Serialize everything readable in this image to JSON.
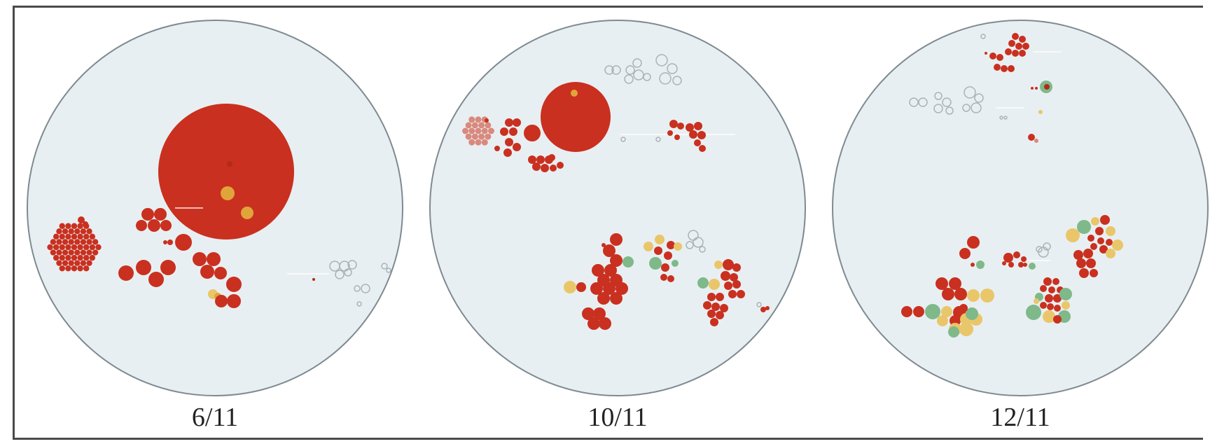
{
  "panels": [
    {
      "label": "6/11"
    },
    {
      "label": "10/11"
    },
    {
      "label": "12/11"
    }
  ],
  "colors": {
    "frame": "#4a4a4a",
    "disc_fill": "#e8eff2",
    "disc_stroke": "#7f8a90",
    "red": "#c9301f",
    "red_dark": "#b42a1a",
    "orange": "#e0a53a",
    "yellow": "#eac66a",
    "green": "#7fb98a",
    "grey_outline": "#a9b3b8",
    "pink": "#d9897d"
  }
}
